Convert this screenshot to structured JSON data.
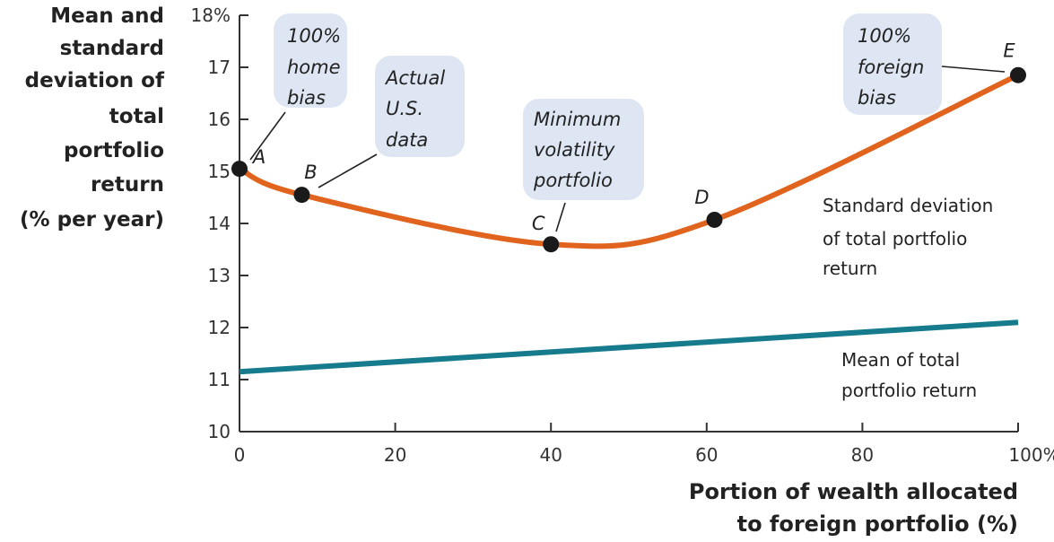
{
  "chart_data": {
    "type": "line",
    "ylabel": [
      "Mean and",
      "standard",
      "deviation of",
      "total",
      "portfolio",
      "return",
      "(% per year)"
    ],
    "xlabel": [
      "Portion of wealth allocated",
      "to foreign portfolio (%)"
    ],
    "xlim": [
      0,
      100
    ],
    "ylim": [
      10,
      18
    ],
    "x_ticks": [
      0,
      20,
      40,
      60,
      80,
      100
    ],
    "x_tick_labels": [
      "0",
      "20",
      "40",
      "60",
      "80",
      "100%"
    ],
    "y_ticks": [
      10,
      11,
      12,
      13,
      14,
      15,
      16,
      17,
      18
    ],
    "y_tick_labels": [
      "10",
      "11",
      "12",
      "13",
      "14",
      "15",
      "16",
      "17",
      "18%"
    ],
    "grid": false,
    "series": [
      {
        "name": "Standard deviation of total portfolio return",
        "label_lines": [
          "Standard deviation",
          "of total portfolio",
          "return"
        ],
        "color": "#e0641e",
        "points": [
          {
            "label": "A",
            "x": 0,
            "y": 15.05
          },
          {
            "label": "B",
            "x": 8,
            "y": 14.55
          },
          {
            "label": "C",
            "x": 40,
            "y": 13.6
          },
          {
            "label": "D",
            "x": 61,
            "y": 14.07
          },
          {
            "label": "E",
            "x": 100,
            "y": 16.85
          }
        ]
      },
      {
        "name": "Mean of total portfolio return",
        "label_lines": [
          "Mean of total",
          "portfolio return"
        ],
        "color": "#167b8c",
        "points": [
          {
            "x": 0,
            "y": 11.15
          },
          {
            "x": 100,
            "y": 12.1
          }
        ]
      }
    ],
    "annotations": [
      {
        "point": "A",
        "lines": [
          "100%",
          "home",
          "bias"
        ]
      },
      {
        "point": "B",
        "lines": [
          "Actual",
          "U.S.",
          "data"
        ]
      },
      {
        "point": "C",
        "lines": [
          "Minimum",
          "volatility",
          "portfolio"
        ]
      },
      {
        "point": "E",
        "lines": [
          "100%",
          "foreign",
          "bias"
        ]
      }
    ],
    "annotation_box_color": "#dde6f2"
  }
}
